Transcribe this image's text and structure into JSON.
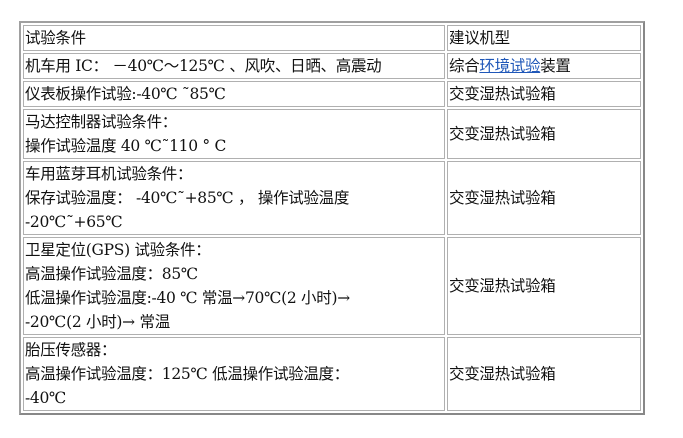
{
  "table": {
    "headers": [
      "试验条件",
      "建议机型"
    ],
    "rows": [
      {
        "condition": [
          "机车用 IC： －40℃～125℃ 、风吹、日晒、高震动"
        ],
        "model_prefix": "综合",
        "model_link": "环境试验",
        "model_suffix": "装置"
      },
      {
        "condition": [
          "仪表板操作试验:-40℃ ˜85℃"
        ],
        "model": "交变湿热试验箱"
      },
      {
        "condition": [
          "马达控制器试验条件：",
          "操作试验温度 40 ℃˜110 ° C"
        ],
        "model": "交变湿热试验箱"
      },
      {
        "condition": [
          "车用蓝芽耳机试验条件：",
          "保存试验温度： -40℃˜+85℃ ， 操作试验温度",
          "-20℃˜+65℃"
        ],
        "model": "交变湿热试验箱"
      },
      {
        "condition": [
          "卫星定位(GPS) 试验条件：",
          "高温操作试验温度：85℃",
          "低温操作试验温度:-40 ℃ 常温→70℃(2 小时)→",
          "-20℃(2 小时)→ 常温"
        ],
        "model": "交变湿热试验箱"
      },
      {
        "condition": [
          "胎压传感器：",
          "高温操作试验温度：125℃ 低温操作试验温度：",
          "-40℃"
        ],
        "model": "交变湿热试验箱"
      }
    ]
  },
  "colors": {
    "link": "#1f57b8",
    "border": "#a0a0a0"
  }
}
